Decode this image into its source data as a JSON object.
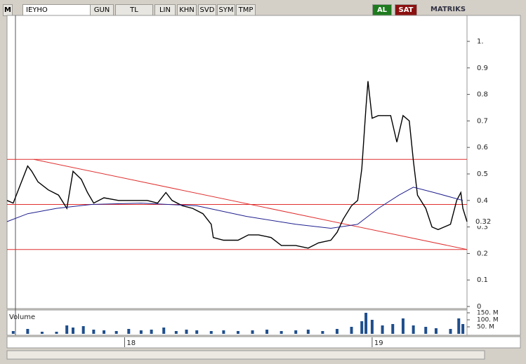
{
  "toolbar": {
    "logo": "M",
    "symbol": "IEYHO",
    "buttons": [
      "GUN",
      "TL",
      "LIN",
      "KHN",
      "SVD",
      "SYM",
      "TMP"
    ],
    "buy": "AL",
    "sell": "SAT",
    "brand": "MATRIKS"
  },
  "chart_data": [
    {
      "type": "line",
      "xlim": [
        -5.7,
        16.6
      ],
      "xticks": [
        {
          "value": 0,
          "label": "18"
        },
        {
          "value": 12,
          "label": "19"
        }
      ],
      "ylim": [
        0,
        1.1
      ],
      "yticks": [
        {
          "value": 1,
          "label": "1."
        },
        0.9,
        0.8,
        0.7,
        0.6,
        0.5,
        0.4,
        0.3,
        0.2,
        0.1,
        0
      ],
      "last_price": 0.32,
      "annotation_color": "#e03030",
      "levels": [
        0.555,
        0.385,
        0.215
      ],
      "trendline": {
        "x": [
          -4.4,
          16.6
        ],
        "y": [
          0.555,
          0.215
        ]
      },
      "series": [
        {
          "color": "#000000",
          "x": [
            -5.7,
            -5.4,
            -5.0,
            -4.7,
            -4.5,
            -4.2,
            -3.7,
            -3.2,
            -2.8,
            -2.5,
            -2.1,
            -1.8,
            -1.5,
            -1.0,
            -0.3,
            0.4,
            1.1,
            1.6,
            2.0,
            2.3,
            2.8,
            3.3,
            3.8,
            4.2,
            4.3,
            4.8,
            5.5,
            6.0,
            6.5,
            7.1,
            7.6,
            8.3,
            8.9,
            9.4,
            10.0,
            10.3,
            10.6,
            11.0,
            11.3,
            11.5,
            11.7,
            11.8,
            12.0,
            12.3,
            12.9,
            13.2,
            13.5,
            13.8,
            14.0,
            14.2,
            14.6,
            14.9,
            15.2,
            15.8,
            16.1,
            16.3,
            16.4,
            16.6
          ],
          "values": [
            0.4,
            0.39,
            0.47,
            0.53,
            0.51,
            0.47,
            0.44,
            0.42,
            0.37,
            0.51,
            0.48,
            0.43,
            0.39,
            0.41,
            0.4,
            0.4,
            0.4,
            0.39,
            0.43,
            0.4,
            0.38,
            0.37,
            0.35,
            0.31,
            0.26,
            0.25,
            0.25,
            0.27,
            0.27,
            0.26,
            0.23,
            0.23,
            0.22,
            0.24,
            0.25,
            0.28,
            0.33,
            0.38,
            0.4,
            0.52,
            0.75,
            0.85,
            0.71,
            0.72,
            0.72,
            0.62,
            0.72,
            0.7,
            0.55,
            0.42,
            0.37,
            0.3,
            0.29,
            0.31,
            0.4,
            0.43,
            0.37,
            0.32
          ]
        },
        {
          "color": "#1f1f8f",
          "x": [
            -5.7,
            -4.7,
            -3.3,
            -1.6,
            0.8,
            3.5,
            5.9,
            8.3,
            10.0,
            11.3,
            12.3,
            13.3,
            14.0,
            15.0,
            16.4
          ],
          "values": [
            0.32,
            0.35,
            0.37,
            0.385,
            0.39,
            0.38,
            0.34,
            0.31,
            0.295,
            0.31,
            0.37,
            0.42,
            0.45,
            0.43,
            0.4
          ]
        }
      ]
    },
    {
      "type": "bar",
      "title": "Volume",
      "color": "#1f4e8c",
      "ylim": [
        0,
        160
      ],
      "yticks": [
        {
          "value": 150,
          "label": "150. M"
        },
        {
          "value": 100,
          "label": "100. M"
        },
        {
          "value": 50,
          "label": "50. M"
        }
      ],
      "x": [
        -5.4,
        -4.7,
        -4.0,
        -3.3,
        -2.8,
        -2.5,
        -2.0,
        -1.5,
        -1.0,
        -0.4,
        0.2,
        0.8,
        1.3,
        1.9,
        2.5,
        3.0,
        3.5,
        4.2,
        4.8,
        5.5,
        6.2,
        6.9,
        7.6,
        8.3,
        8.9,
        9.6,
        10.3,
        11.0,
        11.5,
        11.7,
        12.0,
        12.5,
        13.0,
        13.5,
        14.0,
        14.6,
        15.1,
        15.8,
        16.2,
        16.4
      ],
      "values": [
        20,
        35,
        15,
        15,
        60,
        45,
        55,
        30,
        25,
        20,
        35,
        25,
        30,
        45,
        20,
        30,
        25,
        20,
        25,
        20,
        25,
        30,
        20,
        25,
        30,
        20,
        35,
        50,
        90,
        150,
        100,
        60,
        70,
        110,
        60,
        50,
        40,
        35,
        110,
        70
      ]
    }
  ]
}
